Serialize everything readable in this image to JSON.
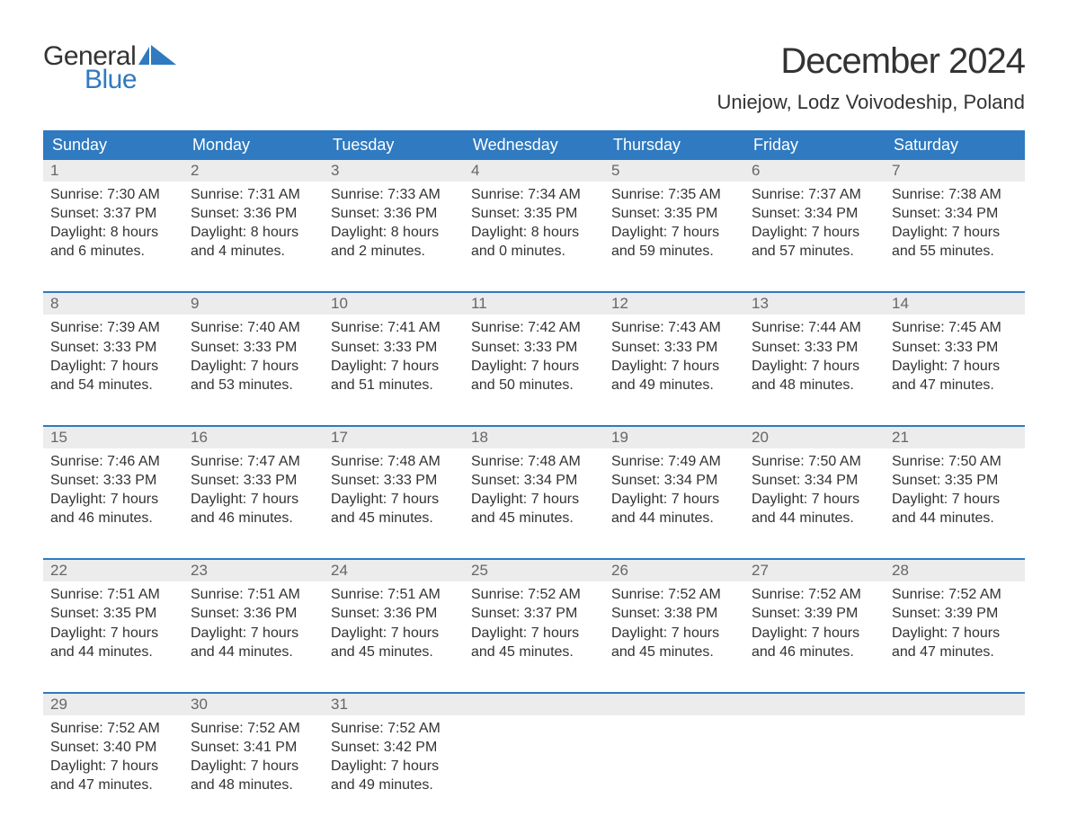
{
  "logo": {
    "line1": "General",
    "line2": "Blue",
    "text_color": "#333333",
    "accent_color": "#2f7ac0"
  },
  "title": "December 2024",
  "location": "Uniejow, Lodz Voivodeship, Poland",
  "colors": {
    "header_bg": "#2f7ac0",
    "header_text": "#ffffff",
    "daynum_bg": "#ececec",
    "daynum_text": "#666666",
    "body_text": "#333333",
    "week_border": "#2f7ac0",
    "page_bg": "#ffffff"
  },
  "day_names": [
    "Sunday",
    "Monday",
    "Tuesday",
    "Wednesday",
    "Thursday",
    "Friday",
    "Saturday"
  ],
  "weeks": [
    [
      {
        "n": "1",
        "sunrise": "7:30 AM",
        "sunset": "3:37 PM",
        "daylight_h": "8",
        "daylight_m": "6"
      },
      {
        "n": "2",
        "sunrise": "7:31 AM",
        "sunset": "3:36 PM",
        "daylight_h": "8",
        "daylight_m": "4"
      },
      {
        "n": "3",
        "sunrise": "7:33 AM",
        "sunset": "3:36 PM",
        "daylight_h": "8",
        "daylight_m": "2"
      },
      {
        "n": "4",
        "sunrise": "7:34 AM",
        "sunset": "3:35 PM",
        "daylight_h": "8",
        "daylight_m": "0"
      },
      {
        "n": "5",
        "sunrise": "7:35 AM",
        "sunset": "3:35 PM",
        "daylight_h": "7",
        "daylight_m": "59"
      },
      {
        "n": "6",
        "sunrise": "7:37 AM",
        "sunset": "3:34 PM",
        "daylight_h": "7",
        "daylight_m": "57"
      },
      {
        "n": "7",
        "sunrise": "7:38 AM",
        "sunset": "3:34 PM",
        "daylight_h": "7",
        "daylight_m": "55"
      }
    ],
    [
      {
        "n": "8",
        "sunrise": "7:39 AM",
        "sunset": "3:33 PM",
        "daylight_h": "7",
        "daylight_m": "54"
      },
      {
        "n": "9",
        "sunrise": "7:40 AM",
        "sunset": "3:33 PM",
        "daylight_h": "7",
        "daylight_m": "53"
      },
      {
        "n": "10",
        "sunrise": "7:41 AM",
        "sunset": "3:33 PM",
        "daylight_h": "7",
        "daylight_m": "51"
      },
      {
        "n": "11",
        "sunrise": "7:42 AM",
        "sunset": "3:33 PM",
        "daylight_h": "7",
        "daylight_m": "50"
      },
      {
        "n": "12",
        "sunrise": "7:43 AM",
        "sunset": "3:33 PM",
        "daylight_h": "7",
        "daylight_m": "49"
      },
      {
        "n": "13",
        "sunrise": "7:44 AM",
        "sunset": "3:33 PM",
        "daylight_h": "7",
        "daylight_m": "48"
      },
      {
        "n": "14",
        "sunrise": "7:45 AM",
        "sunset": "3:33 PM",
        "daylight_h": "7",
        "daylight_m": "47"
      }
    ],
    [
      {
        "n": "15",
        "sunrise": "7:46 AM",
        "sunset": "3:33 PM",
        "daylight_h": "7",
        "daylight_m": "46"
      },
      {
        "n": "16",
        "sunrise": "7:47 AM",
        "sunset": "3:33 PM",
        "daylight_h": "7",
        "daylight_m": "46"
      },
      {
        "n": "17",
        "sunrise": "7:48 AM",
        "sunset": "3:33 PM",
        "daylight_h": "7",
        "daylight_m": "45"
      },
      {
        "n": "18",
        "sunrise": "7:48 AM",
        "sunset": "3:34 PM",
        "daylight_h": "7",
        "daylight_m": "45"
      },
      {
        "n": "19",
        "sunrise": "7:49 AM",
        "sunset": "3:34 PM",
        "daylight_h": "7",
        "daylight_m": "44"
      },
      {
        "n": "20",
        "sunrise": "7:50 AM",
        "sunset": "3:34 PM",
        "daylight_h": "7",
        "daylight_m": "44"
      },
      {
        "n": "21",
        "sunrise": "7:50 AM",
        "sunset": "3:35 PM",
        "daylight_h": "7",
        "daylight_m": "44"
      }
    ],
    [
      {
        "n": "22",
        "sunrise": "7:51 AM",
        "sunset": "3:35 PM",
        "daylight_h": "7",
        "daylight_m": "44"
      },
      {
        "n": "23",
        "sunrise": "7:51 AM",
        "sunset": "3:36 PM",
        "daylight_h": "7",
        "daylight_m": "44"
      },
      {
        "n": "24",
        "sunrise": "7:51 AM",
        "sunset": "3:36 PM",
        "daylight_h": "7",
        "daylight_m": "45"
      },
      {
        "n": "25",
        "sunrise": "7:52 AM",
        "sunset": "3:37 PM",
        "daylight_h": "7",
        "daylight_m": "45"
      },
      {
        "n": "26",
        "sunrise": "7:52 AM",
        "sunset": "3:38 PM",
        "daylight_h": "7",
        "daylight_m": "45"
      },
      {
        "n": "27",
        "sunrise": "7:52 AM",
        "sunset": "3:39 PM",
        "daylight_h": "7",
        "daylight_m": "46"
      },
      {
        "n": "28",
        "sunrise": "7:52 AM",
        "sunset": "3:39 PM",
        "daylight_h": "7",
        "daylight_m": "47"
      }
    ],
    [
      {
        "n": "29",
        "sunrise": "7:52 AM",
        "sunset": "3:40 PM",
        "daylight_h": "7",
        "daylight_m": "47"
      },
      {
        "n": "30",
        "sunrise": "7:52 AM",
        "sunset": "3:41 PM",
        "daylight_h": "7",
        "daylight_m": "48"
      },
      {
        "n": "31",
        "sunrise": "7:52 AM",
        "sunset": "3:42 PM",
        "daylight_h": "7",
        "daylight_m": "49"
      },
      null,
      null,
      null,
      null
    ]
  ],
  "labels": {
    "sunrise_prefix": "Sunrise: ",
    "sunset_prefix": "Sunset: ",
    "daylight_prefix": "Daylight: ",
    "hours_word": " hours",
    "and_word": "and ",
    "minutes_word": " minutes."
  }
}
